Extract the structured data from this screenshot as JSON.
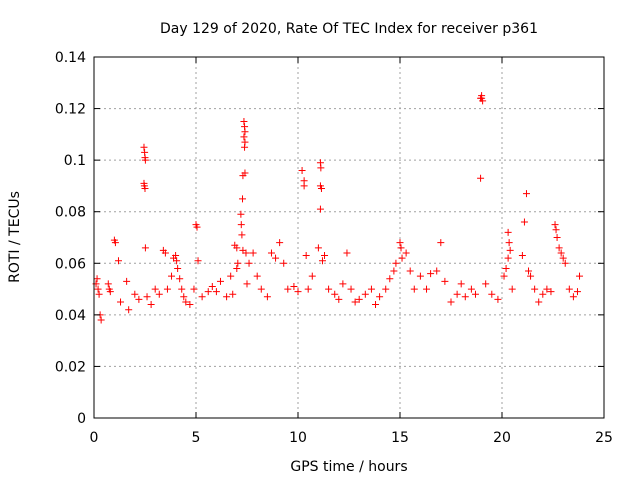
{
  "chart_data": {
    "type": "scatter",
    "title": "Day 129 of 2020, Rate Of TEC Index for receiver p361",
    "xlabel": "GPS time / hours",
    "ylabel": "ROTI / TECUs",
    "xlim": [
      0,
      25
    ],
    "ylim": [
      0,
      0.14
    ],
    "x_ticks": [
      0,
      5,
      10,
      15,
      20,
      25
    ],
    "y_ticks": [
      0,
      0.02,
      0.04,
      0.06,
      0.08,
      0.1,
      0.12,
      0.14
    ],
    "x_tick_labels": [
      "0",
      "5",
      "10",
      "15",
      "20",
      "25"
    ],
    "y_tick_labels": [
      "0",
      "0.02",
      "0.04",
      "0.06",
      "0.08",
      "0.1",
      "0.12",
      "0.14"
    ],
    "grid": true,
    "marker": "+",
    "marker_color": "#ff0000",
    "series": [
      {
        "name": "ROTI",
        "points": [
          [
            0.1,
            0.052
          ],
          [
            0.15,
            0.054
          ],
          [
            0.2,
            0.05
          ],
          [
            0.25,
            0.048
          ],
          [
            0.3,
            0.04
          ],
          [
            0.35,
            0.038
          ],
          [
            0.7,
            0.052
          ],
          [
            0.75,
            0.05
          ],
          [
            0.8,
            0.049
          ],
          [
            1.0,
            0.069
          ],
          [
            1.05,
            0.068
          ],
          [
            1.2,
            0.061
          ],
          [
            1.3,
            0.045
          ],
          [
            1.6,
            0.053
          ],
          [
            1.7,
            0.042
          ],
          [
            2.0,
            0.048
          ],
          [
            2.2,
            0.046
          ],
          [
            2.45,
            0.105
          ],
          [
            2.48,
            0.103
          ],
          [
            2.5,
            0.101
          ],
          [
            2.52,
            0.1
          ],
          [
            2.45,
            0.091
          ],
          [
            2.5,
            0.089
          ],
          [
            2.47,
            0.09
          ],
          [
            2.52,
            0.066
          ],
          [
            2.6,
            0.047
          ],
          [
            2.8,
            0.044
          ],
          [
            3.0,
            0.05
          ],
          [
            3.2,
            0.048
          ],
          [
            3.4,
            0.065
          ],
          [
            3.5,
            0.064
          ],
          [
            3.6,
            0.05
          ],
          [
            3.8,
            0.055
          ],
          [
            3.9,
            0.062
          ],
          [
            4.0,
            0.063
          ],
          [
            4.05,
            0.061
          ],
          [
            4.1,
            0.058
          ],
          [
            4.2,
            0.054
          ],
          [
            4.3,
            0.05
          ],
          [
            4.4,
            0.047
          ],
          [
            4.5,
            0.045
          ],
          [
            4.7,
            0.044
          ],
          [
            4.9,
            0.05
          ],
          [
            5.0,
            0.075
          ],
          [
            5.05,
            0.074
          ],
          [
            5.1,
            0.061
          ],
          [
            5.3,
            0.047
          ],
          [
            5.6,
            0.049
          ],
          [
            5.8,
            0.051
          ],
          [
            6.0,
            0.049
          ],
          [
            6.2,
            0.053
          ],
          [
            6.5,
            0.047
          ],
          [
            6.7,
            0.055
          ],
          [
            6.8,
            0.048
          ],
          [
            6.9,
            0.067
          ],
          [
            7.0,
            0.066
          ],
          [
            7.05,
            0.06
          ],
          [
            7.0,
            0.058
          ],
          [
            7.2,
            0.079
          ],
          [
            7.22,
            0.075
          ],
          [
            7.25,
            0.071
          ],
          [
            7.28,
            0.085
          ],
          [
            7.3,
            0.094
          ],
          [
            7.35,
            0.115
          ],
          [
            7.38,
            0.113
          ],
          [
            7.4,
            0.111
          ],
          [
            7.35,
            0.109
          ],
          [
            7.4,
            0.107
          ],
          [
            7.38,
            0.105
          ],
          [
            7.4,
            0.095
          ],
          [
            7.3,
            0.065
          ],
          [
            7.45,
            0.064
          ],
          [
            7.5,
            0.052
          ],
          [
            7.6,
            0.06
          ],
          [
            7.8,
            0.064
          ],
          [
            8.0,
            0.055
          ],
          [
            8.2,
            0.05
          ],
          [
            8.5,
            0.047
          ],
          [
            8.7,
            0.064
          ],
          [
            8.9,
            0.062
          ],
          [
            9.1,
            0.068
          ],
          [
            9.3,
            0.06
          ],
          [
            9.5,
            0.05
          ],
          [
            9.8,
            0.051
          ],
          [
            10.0,
            0.049
          ],
          [
            10.2,
            0.096
          ],
          [
            10.3,
            0.092
          ],
          [
            10.3,
            0.09
          ],
          [
            10.4,
            0.063
          ],
          [
            10.5,
            0.05
          ],
          [
            10.7,
            0.055
          ],
          [
            11.0,
            0.066
          ],
          [
            11.1,
            0.099
          ],
          [
            11.12,
            0.097
          ],
          [
            11.1,
            0.09
          ],
          [
            11.15,
            0.089
          ],
          [
            11.1,
            0.081
          ],
          [
            11.3,
            0.063
          ],
          [
            11.2,
            0.061
          ],
          [
            11.5,
            0.05
          ],
          [
            11.8,
            0.048
          ],
          [
            12.0,
            0.046
          ],
          [
            12.2,
            0.052
          ],
          [
            12.4,
            0.064
          ],
          [
            12.6,
            0.05
          ],
          [
            12.8,
            0.045
          ],
          [
            13.0,
            0.046
          ],
          [
            13.3,
            0.048
          ],
          [
            13.6,
            0.05
          ],
          [
            13.8,
            0.044
          ],
          [
            14.0,
            0.047
          ],
          [
            14.3,
            0.05
          ],
          [
            14.5,
            0.054
          ],
          [
            14.7,
            0.057
          ],
          [
            14.8,
            0.06
          ],
          [
            15.0,
            0.068
          ],
          [
            15.05,
            0.066
          ],
          [
            15.1,
            0.062
          ],
          [
            15.3,
            0.064
          ],
          [
            15.5,
            0.057
          ],
          [
            15.7,
            0.05
          ],
          [
            16.0,
            0.055
          ],
          [
            16.3,
            0.05
          ],
          [
            16.5,
            0.056
          ],
          [
            16.8,
            0.057
          ],
          [
            17.0,
            0.068
          ],
          [
            17.2,
            0.053
          ],
          [
            17.5,
            0.045
          ],
          [
            17.8,
            0.048
          ],
          [
            18.0,
            0.052
          ],
          [
            18.2,
            0.047
          ],
          [
            18.5,
            0.05
          ],
          [
            18.7,
            0.048
          ],
          [
            18.95,
            0.124
          ],
          [
            19.0,
            0.124
          ],
          [
            19.05,
            0.123
          ],
          [
            19.0,
            0.125
          ],
          [
            18.95,
            0.093
          ],
          [
            19.2,
            0.052
          ],
          [
            19.5,
            0.048
          ],
          [
            19.8,
            0.046
          ],
          [
            20.1,
            0.055
          ],
          [
            20.2,
            0.058
          ],
          [
            20.3,
            0.072
          ],
          [
            20.35,
            0.068
          ],
          [
            20.4,
            0.065
          ],
          [
            20.3,
            0.062
          ],
          [
            20.5,
            0.05
          ],
          [
            21.0,
            0.063
          ],
          [
            21.1,
            0.076
          ],
          [
            21.2,
            0.087
          ],
          [
            21.3,
            0.057
          ],
          [
            21.4,
            0.055
          ],
          [
            21.6,
            0.05
          ],
          [
            21.8,
            0.045
          ],
          [
            22.0,
            0.048
          ],
          [
            22.2,
            0.05
          ],
          [
            22.4,
            0.049
          ],
          [
            22.6,
            0.075
          ],
          [
            22.65,
            0.073
          ],
          [
            22.7,
            0.07
          ],
          [
            22.8,
            0.066
          ],
          [
            22.9,
            0.064
          ],
          [
            23.0,
            0.062
          ],
          [
            23.1,
            0.06
          ],
          [
            23.3,
            0.05
          ],
          [
            23.5,
            0.047
          ],
          [
            23.7,
            0.049
          ],
          [
            23.8,
            0.055
          ]
        ]
      }
    ]
  }
}
